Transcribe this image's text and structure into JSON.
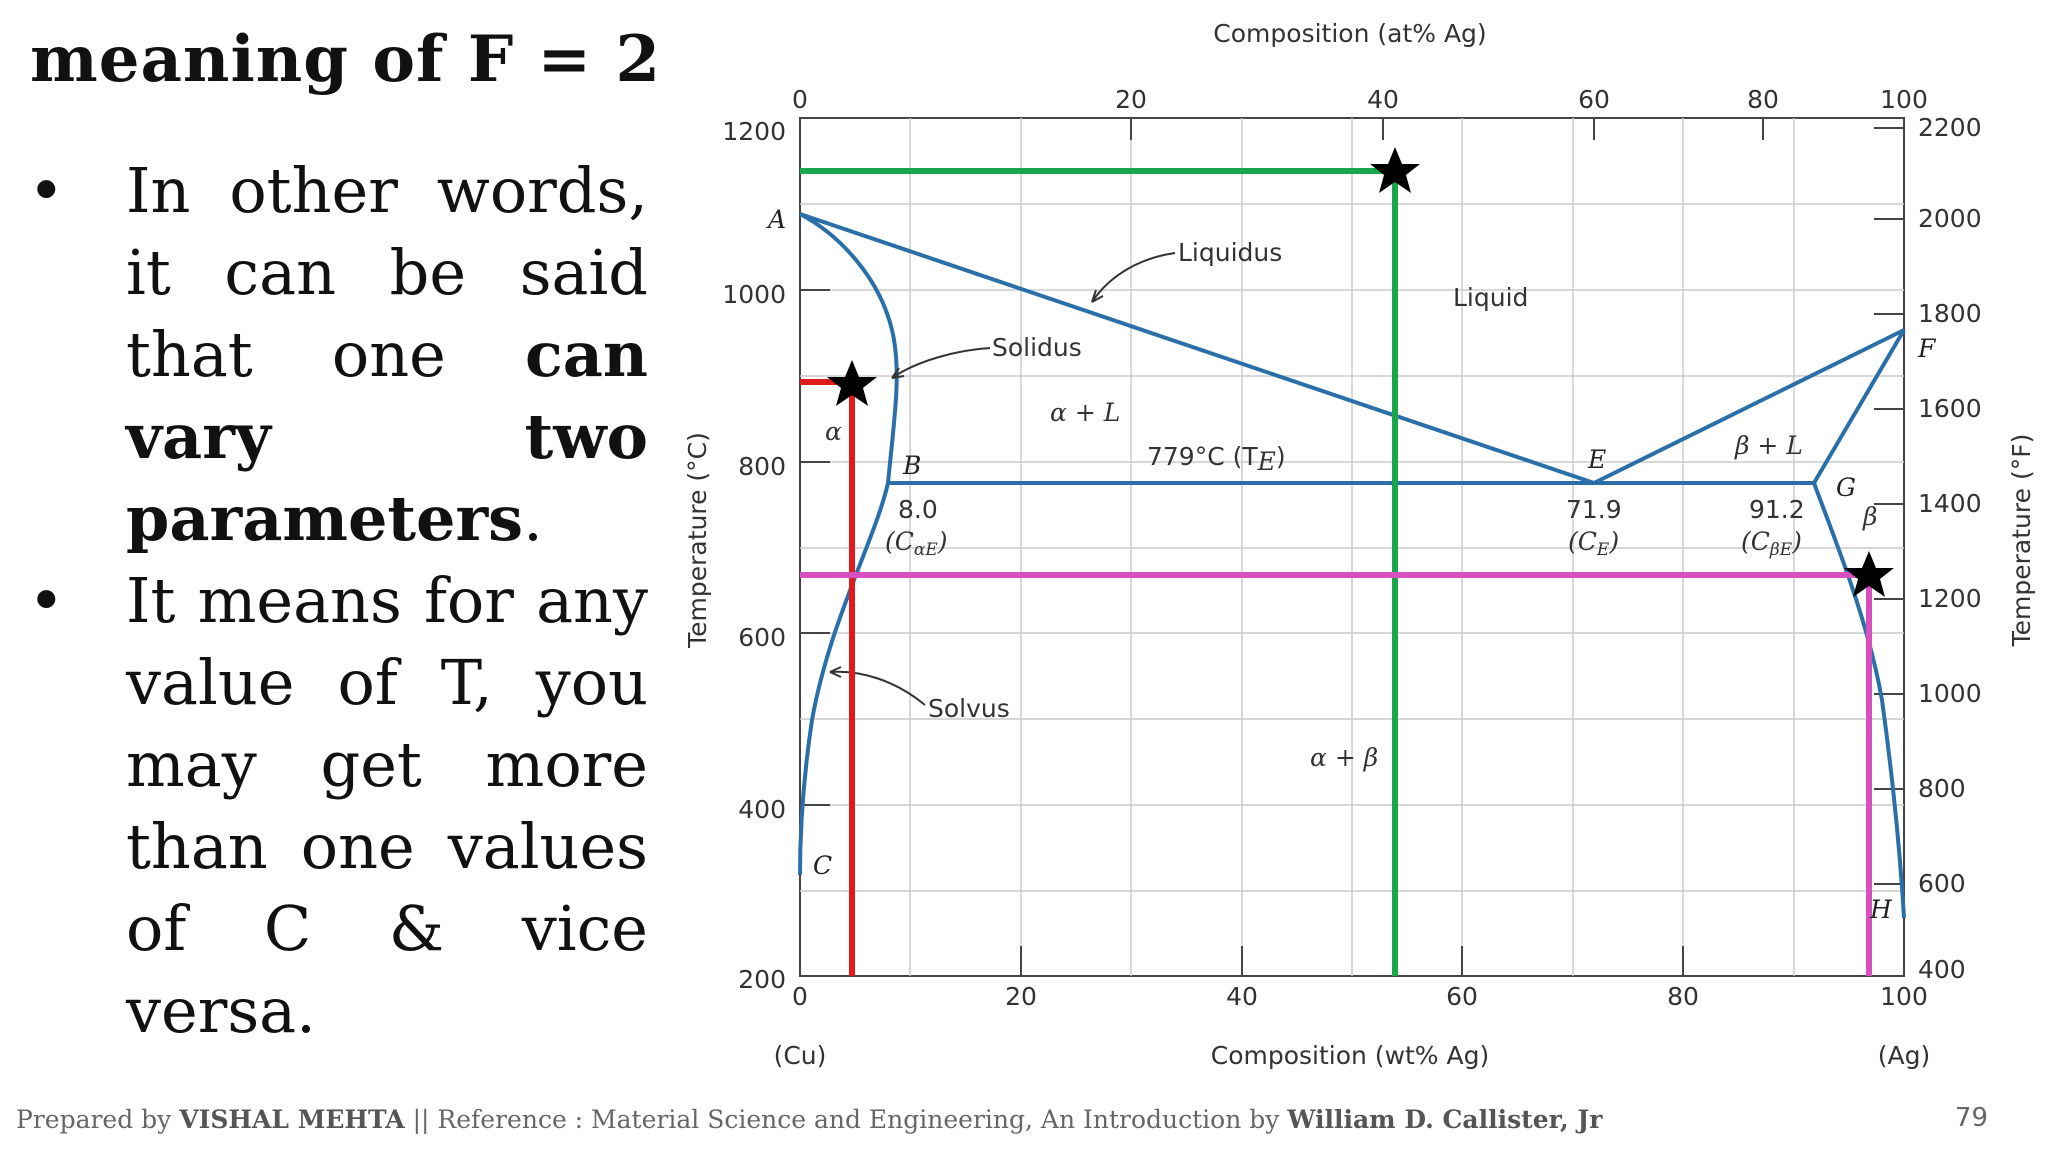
{
  "slide": {
    "title": "meaning of F = 2",
    "bullet1": {
      "marker": "•",
      "text_a": "In other words, it can be said that one ",
      "text_bold": "can vary two parameters",
      "text_b": "."
    },
    "bullet2": {
      "marker": "•",
      "text": "It means for any value of T, you may get more than one values of C & vice versa."
    },
    "footer": {
      "prefix": "Prepared by ",
      "author": "VISHAL MEHTA",
      "middle": " || Reference : Material Science and Engineering, An Introduction by ",
      "ref_author": "William D. Callister, Jr"
    },
    "page_number": "79"
  },
  "diagram": {
    "top_axis_title": "Composition (at% Ag)",
    "top_ticks": [
      "0",
      "20",
      "40",
      "60",
      "80",
      "100"
    ],
    "bottom_axis_title": "Composition (wt% Ag)",
    "bottom_ticks": [
      "0",
      "20",
      "40",
      "60",
      "80",
      "100"
    ],
    "bottom_left_label": "(Cu)",
    "bottom_right_label": "(Ag)",
    "left_axis_title": "Temperature (°C)",
    "left_ticks": [
      "1200",
      "1000",
      "800",
      "600",
      "400",
      "200"
    ],
    "right_axis_title": "Temperature (°F)",
    "right_ticks": [
      "2200",
      "2000",
      "1800",
      "1600",
      "1400",
      "1200",
      "1000",
      "800",
      "600",
      "400"
    ],
    "labels": {
      "liquidus": "Liquidus",
      "solidus": "Solidus",
      "solvus": "Solvus",
      "liquid": "Liquid",
      "alpha": "α",
      "beta": "β",
      "alpha_l": "α + L",
      "beta_l": "β + L",
      "alpha_beta": "α + β",
      "eutectic_temp": "779°C (T",
      "eutectic_temp_sub": "E",
      "eutectic_temp_close": ")",
      "b_comp": "8.0",
      "b_comp_sym": "(C",
      "b_comp_sub": "αE",
      "e_comp": "71.9",
      "e_comp_sym": "(C",
      "e_comp_sub": "E",
      "g_comp": "91.2",
      "g_comp_sym": "(C",
      "g_comp_sub": "βE",
      "close_paren": ")"
    },
    "points": {
      "A": "A",
      "B": "B",
      "C": "C",
      "E": "E",
      "F": "F",
      "G": "G",
      "H": "H"
    },
    "colors": {
      "phase_lines": "#2a6fa8",
      "green_line": "#1aa64a",
      "red_line": "#e01b1b",
      "magenta_line": "#d84fc0",
      "star": "#000000"
    }
  }
}
